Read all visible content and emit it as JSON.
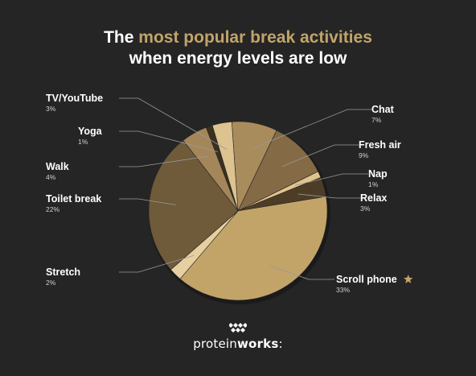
{
  "title": {
    "prefix": "The",
    "accent": "most popular break activities",
    "line2": "when energy levels are low"
  },
  "chart_data": {
    "type": "pie",
    "title": "The most popular break activities when energy levels are low",
    "start_angle_deg": -4,
    "direction": "clockwise",
    "slices": [
      {
        "label": "Chat",
        "pct_label": "7%",
        "value": 7,
        "color": "#a98c5c"
      },
      {
        "label": "Fresh air",
        "pct_label": "9%",
        "value": 9,
        "color": "#846a45"
      },
      {
        "label": "Nap",
        "pct_label": "1%",
        "value": 1,
        "color": "#e1c48b"
      },
      {
        "label": "Relax",
        "pct_label": "3%",
        "value": 3,
        "color": "#4e3d26"
      },
      {
        "label": "Scroll phone",
        "pct_label": "33%",
        "value": 33,
        "color": "#c2a469"
      },
      {
        "label": "Stretch",
        "pct_label": "2%",
        "value": 2,
        "color": "#e6cfa0"
      },
      {
        "label": "Toilet break",
        "pct_label": "22%",
        "value": 22,
        "color": "#6f5a3a"
      },
      {
        "label": "Walk",
        "pct_label": "4%",
        "value": 4,
        "color": "#a48759"
      },
      {
        "label": "Yoga",
        "pct_label": "1%",
        "value": 1,
        "color": "#3b2f20"
      },
      {
        "label": "TV/YouTube",
        "pct_label": "3%",
        "value": 3,
        "color": "#dcc390"
      }
    ],
    "highlight": {
      "label": "Scroll phone",
      "icon": "star-icon",
      "color": "#c2a469"
    }
  },
  "brand": {
    "logo_icon": "checkered-flag-icon",
    "name_light": "protein",
    "name_bold": "works",
    "suffix": ":"
  }
}
